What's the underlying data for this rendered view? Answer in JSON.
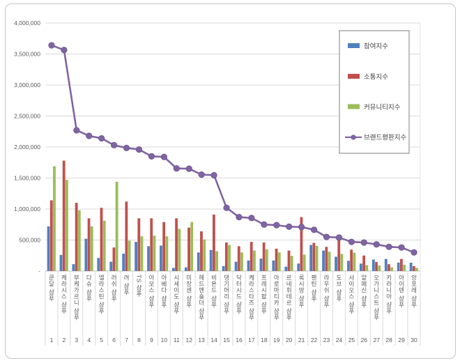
{
  "chart_data": {
    "type": "bar",
    "subtype": "grouped-bars-with-line-overlay",
    "title": "",
    "categories": [
      "쿤달 샴푸",
      "케라시스 샴푸",
      "부케가르니 샴푸",
      "다슈 샴푸",
      "엘라스틴 샴푸",
      "러쉬 샴푸",
      "려 샴푸",
      "TS 샴푸",
      "아모스 샴푸",
      "아베다 샴푸",
      "시세이도 샴푸",
      "미장센 샴푸",
      "헤드엔숄더 샴푸",
      "비욘드 샴푸",
      "댕기머리 샴푸",
      "닥터시드 샴푸",
      "케라스타즈 샴푸",
      "프레시팝 샴푸",
      "아로마티카 샴푸",
      "르네휘테르 샴푸",
      "록시땅 샴푸",
      "팬틴 샴푸",
      "라우쉬 샴푸",
      "도브 샴푸",
      "사이오스 샴푸",
      "알페신 샴푸",
      "오가니스트 샴푸",
      "키라니아 샴푸",
      "아이덴 샴푸",
      "앙포레 샴푸"
    ],
    "ranks": [
      1,
      2,
      3,
      4,
      5,
      6,
      7,
      8,
      9,
      10,
      11,
      12,
      13,
      14,
      15,
      16,
      17,
      18,
      19,
      20,
      21,
      22,
      23,
      24,
      25,
      26,
      27,
      28,
      29,
      30
    ],
    "series": [
      {
        "name": "참여지수",
        "type": "bar",
        "color": "#4F81BD",
        "values": [
          720000,
          260000,
          110000,
          520000,
          210000,
          150000,
          280000,
          470000,
          400000,
          410000,
          50000,
          60000,
          300000,
          340000,
          80000,
          150000,
          170000,
          200000,
          170000,
          70000,
          120000,
          420000,
          330000,
          230000,
          165000,
          120000,
          185000,
          195000,
          135000,
          135000
        ]
      },
      {
        "name": "소통지수",
        "type": "bar",
        "color": "#C0504D",
        "values": [
          1140000,
          1780000,
          1100000,
          850000,
          1020000,
          380000,
          1120000,
          850000,
          850000,
          790000,
          850000,
          700000,
          640000,
          910000,
          460000,
          400000,
          470000,
          460000,
          360000,
          330000,
          870000,
          455000,
          390000,
          500000,
          345000,
          250000,
          145000,
          110000,
          195000,
          80000
        ]
      },
      {
        "name": "커뮤니티지수",
        "type": "bar",
        "color": "#9BBB59",
        "values": [
          1690000,
          1470000,
          980000,
          720000,
          810000,
          1440000,
          490000,
          560000,
          570000,
          560000,
          680000,
          790000,
          510000,
          320000,
          420000,
          300000,
          330000,
          350000,
          300000,
          245000,
          265000,
          405000,
          310000,
          275000,
          295000,
          95000,
          90000,
          60000,
          100000,
          50000
        ]
      },
      {
        "name": "브랜드평판지수",
        "type": "line",
        "color": "#8064A2",
        "values": [
          3640000,
          3565000,
          2270000,
          2180000,
          2140000,
          2030000,
          1985000,
          1960000,
          1850000,
          1840000,
          1655000,
          1650000,
          1555000,
          1545000,
          1020000,
          870000,
          855000,
          750000,
          740000,
          715000,
          710000,
          665000,
          550000,
          540000,
          470000,
          460000,
          430000,
          390000,
          380000,
          300000
        ]
      }
    ],
    "y_axis": {
      "min": 0,
      "max": 4000000,
      "step": 500000,
      "tick_labels": [
        "-",
        "500,000",
        "1,000,000",
        "1,500,000",
        "2,000,000",
        "2,500,000",
        "3,000,000",
        "3,500,000",
        "4,000,000"
      ]
    },
    "x_axis": {
      "label_rows": [
        "brand-name",
        "rank-number"
      ]
    },
    "legend": {
      "position": "top-right",
      "entries": [
        {
          "label": "참여지수",
          "swatch": "bar",
          "color": "#4F81BD"
        },
        {
          "label": "소통지수",
          "swatch": "bar",
          "color": "#C0504D"
        },
        {
          "label": "커뮤니티지수",
          "swatch": "bar",
          "color": "#9BBB59"
        },
        {
          "label": "브랜드평판지수",
          "swatch": "line",
          "color": "#8064A2"
        }
      ]
    },
    "grid": true,
    "colors": {
      "gridline": "#D9D9D9",
      "axis": "#BFBFBF",
      "text": "#595959",
      "legend_border": "#7F7F7F",
      "frame": "#C6C6C6"
    }
  }
}
